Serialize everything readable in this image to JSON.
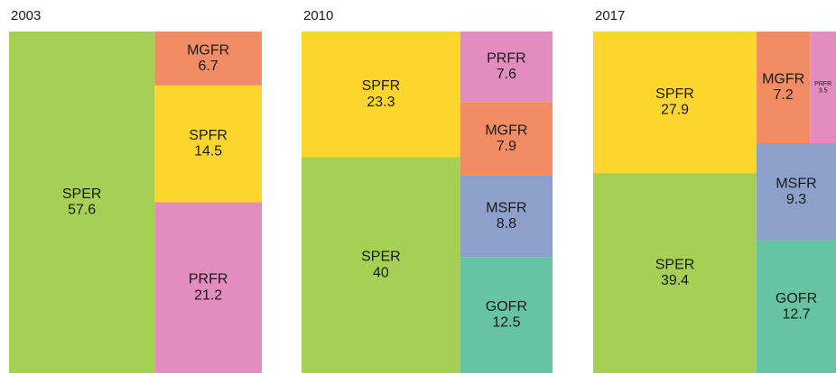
{
  "chart_data": [
    {
      "type": "treemap",
      "title": "2003",
      "categories": [
        "SPER",
        "MGFR",
        "SPFR",
        "PRFR"
      ],
      "values": [
        57.6,
        6.7,
        14.5,
        21.2
      ],
      "colors": [
        "#a6cf55",
        "#f28c63",
        "#fcd62d",
        "#e38cbf"
      ]
    },
    {
      "type": "treemap",
      "title": "2010",
      "categories": [
        "SPFR",
        "SPER",
        "PRFR",
        "MGFR",
        "MSFR",
        "GOFR"
      ],
      "values": [
        23.3,
        40,
        7.6,
        7.9,
        8.8,
        12.5
      ],
      "colors": [
        "#fcd62d",
        "#a6cf55",
        "#e38cbf",
        "#f28c63",
        "#8d9fcb",
        "#66c3a3"
      ]
    },
    {
      "type": "treemap",
      "title": "2017",
      "categories": [
        "SPFR",
        "SPER",
        "MGFR",
        "PRFR",
        "MSFR",
        "GOFR"
      ],
      "values": [
        27.9,
        39.4,
        7.2,
        3.5,
        9.3,
        12.7
      ],
      "colors": [
        "#fcd62d",
        "#a6cf55",
        "#f28c63",
        "#e38cbf",
        "#8d9fcb",
        "#66c3a3"
      ]
    }
  ]
}
